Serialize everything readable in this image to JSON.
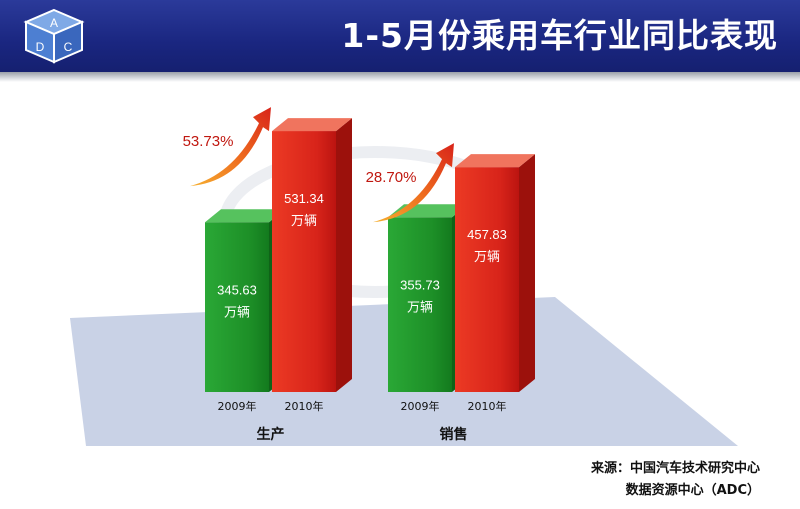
{
  "header": {
    "title": "1-5月份乘用车行业同比表现",
    "logo_letters": [
      "A",
      "D",
      "C"
    ]
  },
  "source": {
    "line1": "来源：中国汽车技术研究中心",
    "line2": "数据资源中心（ADC）"
  },
  "colors": {
    "header": "#1a2680",
    "green": "#1f9a2a",
    "red": "#e0261c",
    "growth_text": "#c0170f",
    "floor": "#c9d2e6"
  },
  "chart_data": {
    "type": "bar",
    "categories": [
      "生产",
      "销售"
    ],
    "series": [
      {
        "name": "2009年",
        "values": [
          345.63,
          355.73
        ]
      },
      {
        "name": "2010年",
        "values": [
          531.34,
          457.83
        ]
      }
    ],
    "bar_value_labels": [
      [
        "345.63",
        "355.73"
      ],
      [
        "531.34",
        "457.83"
      ]
    ],
    "unit": "万辆",
    "growth_labels": [
      "53.73%",
      "28.70%"
    ],
    "ylim": [
      0,
      560
    ],
    "grid": false,
    "legend": "none"
  }
}
